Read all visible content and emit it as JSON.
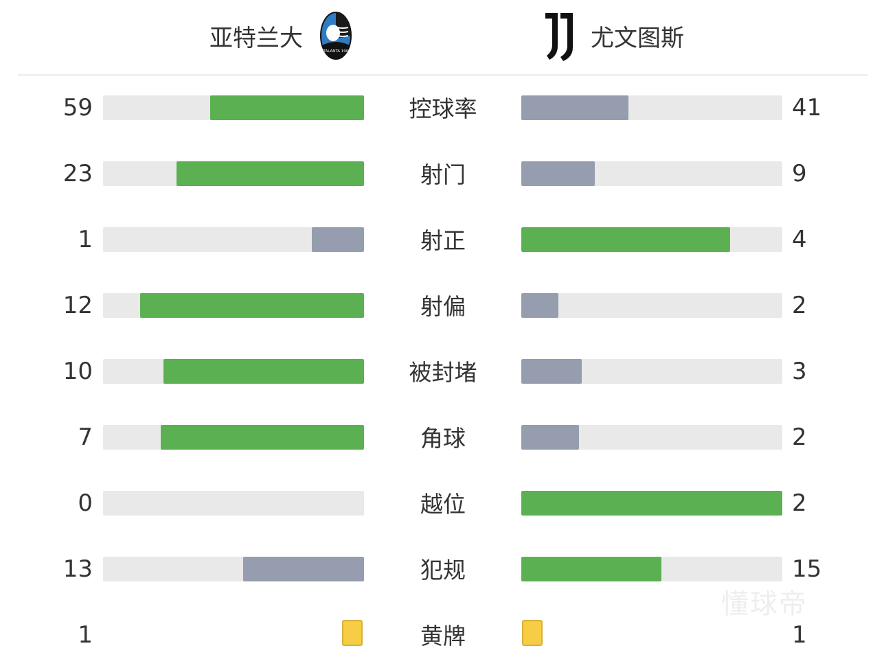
{
  "header": {
    "home_team": "亚特兰大",
    "away_team": "尤文图斯",
    "home_logo_text": "ATALANTA 1907",
    "away_logo_icon": "juventus-j-logo"
  },
  "colors": {
    "leading": "#5bb151",
    "trailing": "#959daf",
    "track": "#e9e9e9",
    "yellow_card": "#f6cd44"
  },
  "stats": [
    {
      "label": "控球率",
      "home": "59",
      "away": "41"
    },
    {
      "label": "射门",
      "home": "23",
      "away": "9"
    },
    {
      "label": "射正",
      "home": "1",
      "away": "4"
    },
    {
      "label": "射偏",
      "home": "12",
      "away": "2"
    },
    {
      "label": "被封堵",
      "home": "10",
      "away": "3"
    },
    {
      "label": "角球",
      "home": "7",
      "away": "2"
    },
    {
      "label": "越位",
      "home": "0",
      "away": "2"
    },
    {
      "label": "犯规",
      "home": "13",
      "away": "15"
    }
  ],
  "yellow_cards": {
    "label": "黄牌",
    "home": "1",
    "away": "1"
  },
  "watermark": "懂球帝"
}
